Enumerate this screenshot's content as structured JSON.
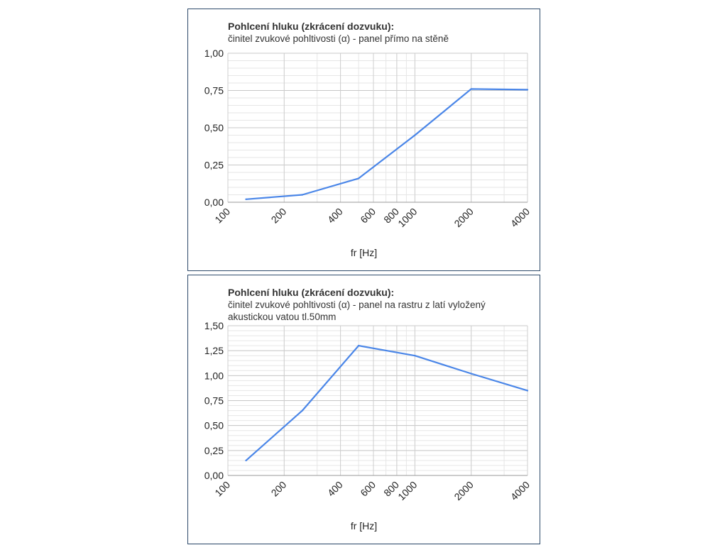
{
  "chart_data": [
    {
      "type": "line",
      "title": "Pohlcení hluku (zkrácení dozvuku):",
      "subtitle": "činitel zvukové pohltivosti (α) - panel přímo na stěně",
      "xlabel": "fr [Hz]",
      "ylabel": "",
      "x_scale": "log",
      "xlim": [
        100,
        4000
      ],
      "ylim": [
        0,
        1
      ],
      "x_ticks": [
        100,
        200,
        400,
        600,
        800,
        1000,
        2000,
        4000
      ],
      "x_tick_labels": [
        "100",
        "200",
        "400",
        "600",
        "800",
        "1000",
        "2000",
        "4000"
      ],
      "y_ticks": [
        0,
        0.25,
        0.5,
        0.75,
        1
      ],
      "y_tick_labels": [
        "0,00",
        "0,25",
        "0,50",
        "0,75",
        "1,00"
      ],
      "grid": true,
      "series": [
        {
          "x": [
            125,
            250,
            500,
            1000,
            2000,
            4000
          ],
          "values": [
            0.02,
            0.05,
            0.16,
            0.45,
            0.76,
            0.755
          ],
          "color": "#4a86e8"
        }
      ]
    },
    {
      "type": "line",
      "title": "Pohlcení hluku (zkrácení dozvuku):",
      "subtitle": "činitel zvukové pohltivosti (α) - panel na rastru z latí vyložený akustickou vatou tl.50mm",
      "xlabel": "fr [Hz]",
      "ylabel": "",
      "x_scale": "log",
      "xlim": [
        100,
        4000
      ],
      "ylim": [
        0,
        1.5
      ],
      "x_ticks": [
        100,
        200,
        400,
        600,
        800,
        1000,
        2000,
        4000
      ],
      "x_tick_labels": [
        "100",
        "200",
        "400",
        "600",
        "800",
        "1000",
        "2000",
        "4000"
      ],
      "y_ticks": [
        0,
        0.25,
        0.5,
        0.75,
        1,
        1.25,
        1.5
      ],
      "y_tick_labels": [
        "0,00",
        "0,25",
        "0,50",
        "0,75",
        "1,00",
        "1,25",
        "1,50"
      ],
      "grid": true,
      "series": [
        {
          "x": [
            125,
            250,
            500,
            1000,
            2000,
            4000
          ],
          "values": [
            0.15,
            0.65,
            1.3,
            1.2,
            1.02,
            0.85
          ],
          "color": "#4a86e8"
        }
      ]
    }
  ]
}
